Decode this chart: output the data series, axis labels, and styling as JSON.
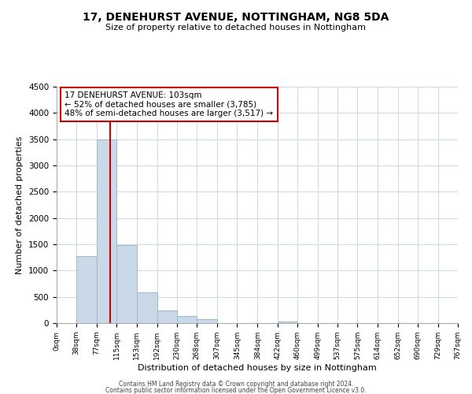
{
  "title": "17, DENEHURST AVENUE, NOTTINGHAM, NG8 5DA",
  "subtitle": "Size of property relative to detached houses in Nottingham",
  "xlabel": "Distribution of detached houses by size in Nottingham",
  "ylabel": "Number of detached properties",
  "bin_edges": [
    0,
    38,
    77,
    115,
    153,
    192,
    230,
    268,
    307,
    345,
    384,
    422,
    460,
    499,
    537,
    575,
    614,
    652,
    690,
    729,
    767
  ],
  "bar_heights": [
    0,
    1280,
    3500,
    1480,
    580,
    245,
    140,
    80,
    0,
    0,
    0,
    30,
    0,
    0,
    0,
    0,
    0,
    0,
    0,
    0
  ],
  "bar_color": "#c9d9e8",
  "bar_edge_color": "#a0b8cc",
  "property_line_x": 103,
  "property_line_color": "#cc0000",
  "ylim": [
    0,
    4500
  ],
  "annotation_text": "17 DENEHURST AVENUE: 103sqm\n← 52% of detached houses are smaller (3,785)\n48% of semi-detached houses are larger (3,517) →",
  "annotation_box_color": "#ffffff",
  "annotation_box_edge": "#cc0000",
  "grid_color": "#c8d8e8",
  "tick_labels": [
    "0sqm",
    "38sqm",
    "77sqm",
    "115sqm",
    "153sqm",
    "192sqm",
    "230sqm",
    "268sqm",
    "307sqm",
    "345sqm",
    "384sqm",
    "422sqm",
    "460sqm",
    "499sqm",
    "537sqm",
    "575sqm",
    "614sqm",
    "652sqm",
    "690sqm",
    "729sqm",
    "767sqm"
  ],
  "footer_line1": "Contains HM Land Registry data © Crown copyright and database right 2024.",
  "footer_line2": "Contains public sector information licensed under the Open Government Licence v3.0."
}
